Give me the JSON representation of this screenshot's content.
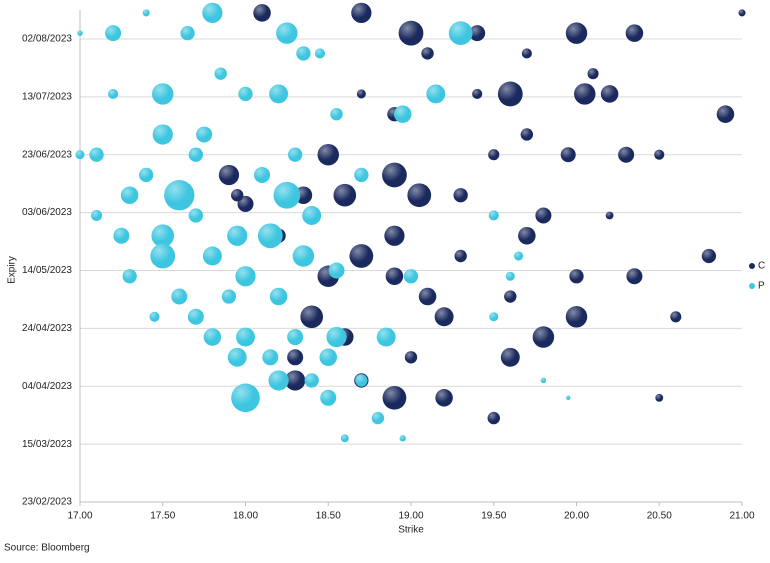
{
  "chart_data": {
    "type": "bubble",
    "x_label": "Strike",
    "y_label": "Expiry",
    "source": "Source: Bloomberg",
    "xlim": [
      17,
      21
    ],
    "xticks": [
      {
        "value": 17,
        "label": "17.00"
      },
      {
        "value": 17.5,
        "label": "17.50"
      },
      {
        "value": 18,
        "label": "18.00"
      },
      {
        "value": 18.5,
        "label": "18.50"
      },
      {
        "value": 19,
        "label": "19.00"
      },
      {
        "value": 19.5,
        "label": "19.50"
      },
      {
        "value": 20,
        "label": "20.00"
      },
      {
        "value": 20.5,
        "label": "20.50"
      },
      {
        "value": 21,
        "label": "21.00"
      }
    ],
    "ylim": [
      "23/02/2023",
      "12/08/2023"
    ],
    "yticks": [
      "23/02/2023",
      "15/03/2023",
      "04/04/2023",
      "24/04/2023",
      "14/05/2023",
      "03/06/2023",
      "23/06/2023",
      "13/07/2023",
      "02/08/2023"
    ],
    "grid": true,
    "legend": "right",
    "series": [
      {
        "name": "C",
        "color": "#1b2a5e",
        "x": [
          21.0,
          20.35,
          20.0,
          19.0,
          18.7,
          18.1,
          19.4,
          19.7,
          19.1,
          20.1,
          19.6,
          20.05,
          20.2,
          20.9,
          19.4,
          18.9,
          18.7,
          19.7,
          20.3,
          19.95,
          20.5,
          18.5,
          18.9,
          19.5,
          17.9,
          18.6,
          19.05,
          18.35,
          19.3,
          19.8,
          20.2,
          18.9,
          19.7,
          20.8,
          20.35,
          20.0,
          18.7,
          18.5,
          18.9,
          19.6,
          19.1,
          20.6,
          20.0,
          19.8,
          19.2,
          18.4,
          18.6,
          19.6,
          18.3,
          18.9,
          19.2,
          18.7,
          19.5,
          20.5,
          18.3,
          19.0,
          18.0,
          18.2,
          19.3,
          17.95
        ],
        "y": [
          "11/08/2023",
          "04/08/2023",
          "04/08/2023",
          "04/08/2023",
          "11/08/2023",
          "11/08/2023",
          "04/08/2023",
          "28/07/2023",
          "28/07/2023",
          "21/07/2023",
          "14/07/2023",
          "14/07/2023",
          "14/07/2023",
          "07/07/2023",
          "14/07/2023",
          "07/07/2023",
          "14/07/2023",
          "30/06/2023",
          "23/06/2023",
          "23/06/2023",
          "23/06/2023",
          "23/06/2023",
          "16/06/2023",
          "23/06/2023",
          "16/06/2023",
          "09/06/2023",
          "09/06/2023",
          "09/06/2023",
          "09/06/2023",
          "02/06/2023",
          "02/06/2023",
          "26/05/2023",
          "26/05/2023",
          "19/05/2023",
          "12/05/2023",
          "12/05/2023",
          "19/05/2023",
          "12/05/2023",
          "12/05/2023",
          "05/05/2023",
          "05/05/2023",
          "28/04/2023",
          "28/04/2023",
          "21/04/2023",
          "28/04/2023",
          "28/04/2023",
          "21/04/2023",
          "14/04/2023",
          "06/04/2023",
          "31/03/2023",
          "31/03/2023",
          "06/04/2023",
          "24/03/2023",
          "31/03/2023",
          "14/04/2023",
          "14/04/2023",
          "06/06/2023",
          "26/05/2023",
          "19/05/2023",
          "09/06/2023"
        ],
        "size": [
          5,
          30,
          45,
          60,
          40,
          30,
          25,
          10,
          15,
          12,
          60,
          45,
          30,
          30,
          10,
          20,
          8,
          15,
          25,
          22,
          10,
          45,
          60,
          12,
          40,
          50,
          55,
          30,
          20,
          25,
          6,
          40,
          30,
          20,
          25,
          20,
          55,
          45,
          30,
          15,
          30,
          12,
          45,
          45,
          35,
          50,
          30,
          35,
          40,
          55,
          30,
          20,
          15,
          6,
          25,
          15,
          25,
          20,
          15,
          15
        ]
      },
      {
        "name": "P",
        "color": "#3ec6e0",
        "x": [
          17.0,
          17.2,
          17.4,
          17.8,
          17.65,
          18.25,
          19.3,
          18.35,
          17.5,
          17.2,
          17.85,
          18.0,
          18.2,
          17.5,
          17.1,
          17.75,
          17.0,
          18.95,
          18.3,
          17.6,
          18.25,
          17.1,
          17.25,
          17.5,
          17.7,
          17.95,
          18.15,
          18.35,
          17.5,
          17.8,
          18.0,
          18.2,
          17.3,
          17.6,
          17.45,
          17.7,
          17.8,
          18.0,
          18.3,
          18.55,
          17.95,
          18.15,
          18.5,
          18.85,
          18.0,
          18.2,
          18.5,
          18.7,
          18.8,
          18.6,
          18.95,
          19.5,
          19.6,
          19.5,
          19.0,
          19.15,
          18.7,
          18.1,
          17.4,
          17.7,
          18.4,
          19.65,
          18.55,
          17.3,
          17.9,
          18.4,
          19.8,
          19.95,
          18.45,
          18.55
        ],
        "y": [
          "04/08/2023",
          "04/08/2023",
          "11/08/2023",
          "11/08/2023",
          "04/08/2023",
          "04/08/2023",
          "04/08/2023",
          "28/07/2023",
          "14/07/2023",
          "14/07/2023",
          "21/07/2023",
          "14/07/2023",
          "14/07/2023",
          "30/06/2023",
          "23/06/2023",
          "30/06/2023",
          "23/06/2023",
          "07/07/2023",
          "23/06/2023",
          "09/06/2023",
          "09/06/2023",
          "02/06/2023",
          "26/05/2023",
          "26/05/2023",
          "02/06/2023",
          "26/05/2023",
          "26/05/2023",
          "19/05/2023",
          "19/05/2023",
          "19/05/2023",
          "12/05/2023",
          "05/05/2023",
          "12/05/2023",
          "05/05/2023",
          "28/04/2023",
          "28/04/2023",
          "21/04/2023",
          "21/04/2023",
          "21/04/2023",
          "21/04/2023",
          "14/04/2023",
          "14/04/2023",
          "14/04/2023",
          "21/04/2023",
          "31/03/2023",
          "06/04/2023",
          "31/03/2023",
          "06/04/2023",
          "24/03/2023",
          "17/03/2023",
          "17/03/2023",
          "02/06/2023",
          "12/05/2023",
          "28/04/2023",
          "12/05/2023",
          "14/07/2023",
          "16/06/2023",
          "16/06/2023",
          "16/06/2023",
          "23/06/2023",
          "02/06/2023",
          "19/05/2023",
          "14/05/2023",
          "09/06/2023",
          "05/05/2023",
          "06/04/2023",
          "06/04/2023",
          "31/03/2023",
          "28/07/2023",
          "07/07/2023"
        ],
        "size": [
          3,
          25,
          5,
          40,
          20,
          45,
          55,
          20,
          45,
          10,
          15,
          20,
          35,
          40,
          20,
          25,
          8,
          30,
          20,
          90,
          70,
          12,
          25,
          50,
          20,
          40,
          60,
          45,
          60,
          35,
          40,
          30,
          20,
          25,
          10,
          25,
          30,
          35,
          25,
          40,
          35,
          25,
          30,
          35,
          80,
          40,
          25,
          15,
          15,
          6,
          4,
          10,
          8,
          8,
          20,
          35,
          20,
          25,
          20,
          20,
          35,
          8,
          25,
          30,
          20,
          20,
          3,
          2,
          10,
          15
        ]
      }
    ]
  }
}
